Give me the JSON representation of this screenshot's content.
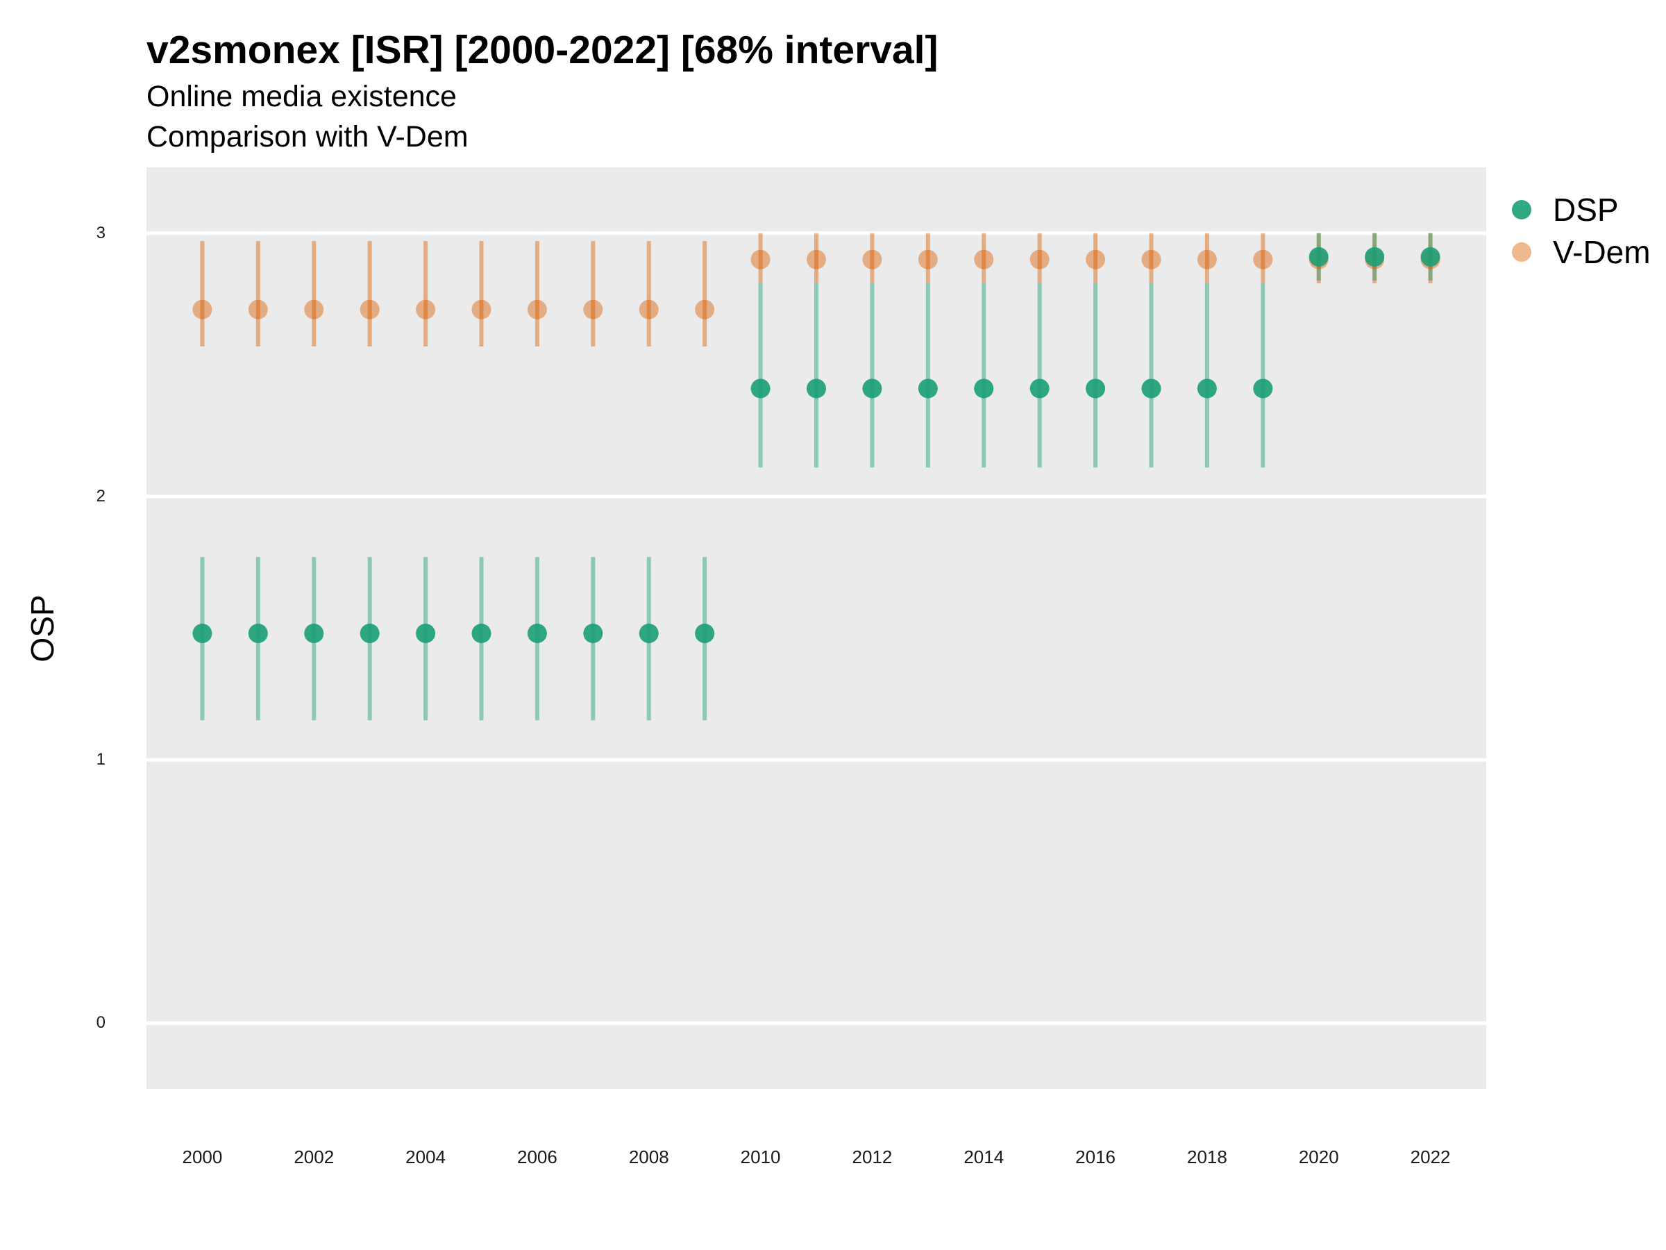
{
  "chart_data": {
    "type": "scatter",
    "title": "v2smonex [ISR] [2000-2022] [68% interval]",
    "subtitle_lines": [
      "Online media existence",
      "Comparison with V-Dem"
    ],
    "ylabel": "OSP",
    "xlabel": "",
    "ylim": [
      -0.25,
      3.25
    ],
    "xlim": [
      1999,
      2023
    ],
    "y_ticks": [
      0,
      1,
      2,
      3
    ],
    "x_ticks": [
      2000,
      2002,
      2004,
      2006,
      2008,
      2010,
      2012,
      2014,
      2016,
      2018,
      2020,
      2022
    ],
    "grid": true,
    "legend_position": "right",
    "x": [
      2000,
      2001,
      2002,
      2003,
      2004,
      2005,
      2006,
      2007,
      2008,
      2009,
      2010,
      2011,
      2012,
      2013,
      2014,
      2015,
      2016,
      2017,
      2018,
      2019,
      2020,
      2021,
      2022
    ],
    "series": [
      {
        "name": "DSP",
        "color": "#1b9e77",
        "values": [
          1.48,
          1.48,
          1.48,
          1.48,
          1.48,
          1.48,
          1.48,
          1.48,
          1.48,
          1.48,
          2.41,
          2.41,
          2.41,
          2.41,
          2.41,
          2.41,
          2.41,
          2.41,
          2.41,
          2.41,
          2.91,
          2.91,
          2.91
        ],
        "lower": [
          1.15,
          1.15,
          1.15,
          1.15,
          1.15,
          1.15,
          1.15,
          1.15,
          1.15,
          1.15,
          2.11,
          2.11,
          2.11,
          2.11,
          2.11,
          2.11,
          2.11,
          2.11,
          2.11,
          2.11,
          2.82,
          2.82,
          2.82
        ],
        "upper": [
          1.77,
          1.77,
          1.77,
          1.77,
          1.77,
          1.77,
          1.77,
          1.77,
          1.77,
          1.77,
          2.81,
          2.81,
          2.81,
          2.81,
          2.81,
          2.81,
          2.81,
          2.81,
          2.81,
          2.81,
          3.0,
          3.0,
          3.0
        ]
      },
      {
        "name": "V-Dem",
        "color": "#d95f02",
        "values": [
          2.71,
          2.71,
          2.71,
          2.71,
          2.71,
          2.71,
          2.71,
          2.71,
          2.71,
          2.71,
          2.9,
          2.9,
          2.9,
          2.9,
          2.9,
          2.9,
          2.9,
          2.9,
          2.9,
          2.9,
          2.9,
          2.9,
          2.9
        ],
        "lower": [
          2.57,
          2.57,
          2.57,
          2.57,
          2.57,
          2.57,
          2.57,
          2.57,
          2.57,
          2.57,
          2.81,
          2.81,
          2.81,
          2.81,
          2.81,
          2.81,
          2.81,
          2.81,
          2.81,
          2.81,
          2.81,
          2.81,
          2.81
        ],
        "upper": [
          2.97,
          2.97,
          2.97,
          2.97,
          2.97,
          2.97,
          2.97,
          2.97,
          2.97,
          2.97,
          3.0,
          3.0,
          3.0,
          3.0,
          3.0,
          3.0,
          3.0,
          3.0,
          3.0,
          3.0,
          3.0,
          3.0,
          3.0
        ]
      }
    ]
  }
}
